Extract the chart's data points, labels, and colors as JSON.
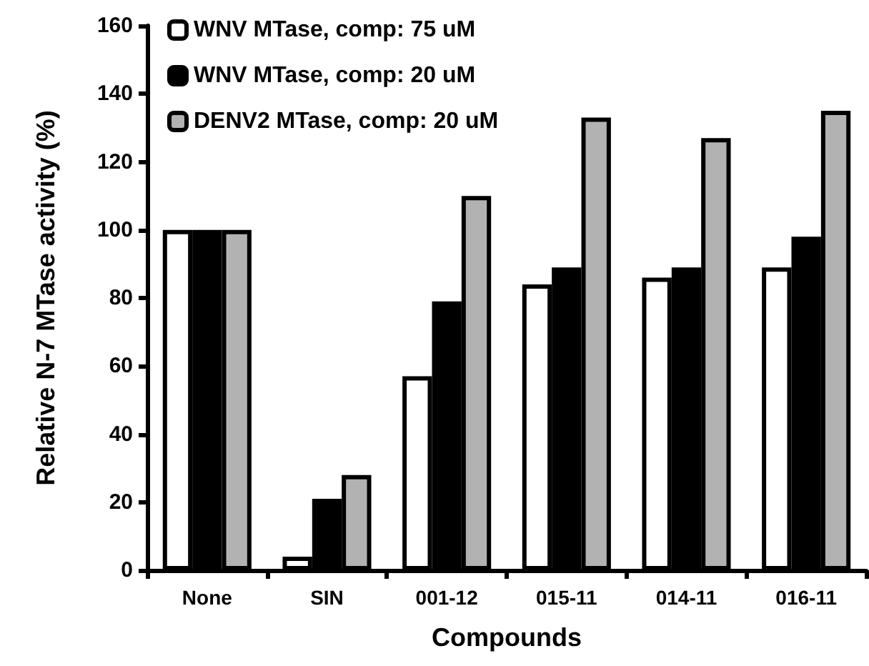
{
  "chart_data": {
    "type": "bar",
    "xlabel": "Compounds",
    "ylabel": "Relative N-7 MTase activity (%)",
    "categories": [
      "None",
      "SIN",
      "001-12",
      "015-11",
      "014-11",
      "016-11"
    ],
    "series": [
      {
        "name": "WNV MTase, comp: 75 uM",
        "color": "#ffffff",
        "values": [
          100,
          4,
          57,
          84,
          86,
          89
        ]
      },
      {
        "name": "WNV MTase, comp: 20 uM",
        "color": "#000000",
        "values": [
          100,
          21,
          79,
          89,
          89,
          98
        ]
      },
      {
        "name": "DENV2 MTase, comp: 20 uM",
        "color": "#b2b2b2",
        "values": [
          100,
          28,
          110,
          133,
          127,
          135
        ]
      }
    ],
    "ylim": [
      0,
      160
    ],
    "yticks": [
      0,
      20,
      40,
      60,
      80,
      100,
      120,
      140,
      160
    ],
    "grid": false,
    "legend": "top left"
  }
}
